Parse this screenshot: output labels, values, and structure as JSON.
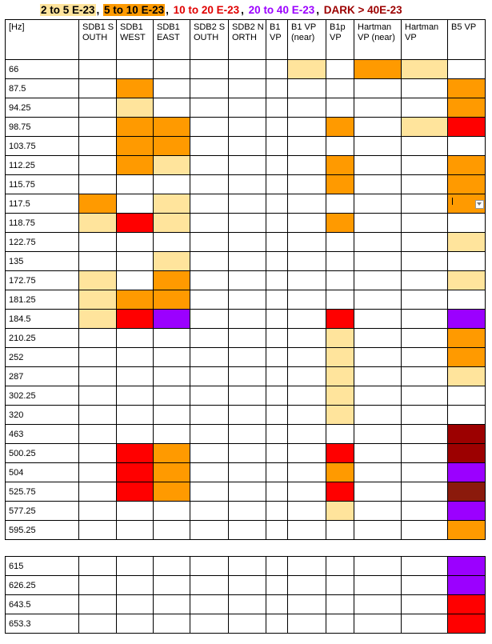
{
  "legend": [
    {
      "text": "2 to 5 E-23",
      "color": "#000000",
      "bg": "#ffe49c"
    },
    {
      "text": ", ",
      "color": "#000000",
      "bg": ""
    },
    {
      "text": "5 to 10 E-23",
      "color": "#000000",
      "bg": "#ff9a00"
    },
    {
      "text": ", ",
      "color": "#000000",
      "bg": ""
    },
    {
      "text": "10 to 20 E-23",
      "color": "#e00000",
      "bg": ""
    },
    {
      "text": ", ",
      "color": "#000000",
      "bg": ""
    },
    {
      "text": "20 to 40 E-23",
      "color": "#9b00ff",
      "bg": ""
    },
    {
      "text": ", ",
      "color": "#000000",
      "bg": ""
    },
    {
      "text": "DARK > 40E-23",
      "color": "#9c0000",
      "bg": ""
    }
  ],
  "header": [
    "[Hz]",
    "SDB1 SOUTH",
    "SDB1 WEST",
    "SDB1 EAST",
    "SDB2 SOUTH",
    "SDB2 NORTH",
    "B1 VP",
    "B1 VP (near)",
    "B1p VP",
    "Hartman VP (near)",
    "Hartman VP",
    "B5 VP"
  ],
  "rows_main": [
    {
      "freq": "66",
      "cells": [
        "",
        "",
        "",
        "",
        "",
        "",
        "pale",
        "",
        "orange",
        "pale",
        ""
      ]
    },
    {
      "freq": "87.5",
      "cells": [
        "",
        "orange",
        "",
        "",
        "",
        "",
        "",
        "",
        "",
        "",
        "orange"
      ]
    },
    {
      "freq": "94.25",
      "cells": [
        "",
        "pale",
        "",
        "",
        "",
        "",
        "",
        "",
        "",
        "",
        "orange"
      ]
    },
    {
      "freq": "98.75",
      "cells": [
        "",
        "orange",
        "orange",
        "",
        "",
        "",
        "",
        "orange",
        "",
        "pale",
        "red"
      ]
    },
    {
      "freq": "103.75",
      "cells": [
        "",
        "orange",
        "orange",
        "",
        "",
        "",
        "",
        "",
        "",
        "",
        ""
      ]
    },
    {
      "freq": "112.25",
      "cells": [
        "",
        "orange",
        "pale",
        "",
        "",
        "",
        "",
        "orange",
        "",
        "",
        "orange"
      ]
    },
    {
      "freq": "115.75",
      "cells": [
        "",
        "",
        "",
        "",
        "",
        "",
        "",
        "orange",
        "",
        "",
        "orange"
      ]
    },
    {
      "freq": "117.5",
      "cells": [
        "orange",
        "",
        "pale",
        "",
        "",
        "",
        "",
        "",
        "",
        "",
        "orange"
      ]
    },
    {
      "freq": "118.75",
      "cells": [
        "pale",
        "red",
        "pale",
        "",
        "",
        "",
        "",
        "orange",
        "",
        "",
        ""
      ]
    },
    {
      "freq": "122.75",
      "cells": [
        "",
        "",
        "",
        "",
        "",
        "",
        "",
        "",
        "",
        "",
        "pale"
      ]
    },
    {
      "freq": "135",
      "cells": [
        "",
        "",
        "pale",
        "",
        "",
        "",
        "",
        "",
        "",
        "",
        ""
      ]
    },
    {
      "freq": "172.75",
      "cells": [
        "pale",
        "",
        "orange",
        "",
        "",
        "",
        "",
        "",
        "",
        "",
        "pale"
      ]
    },
    {
      "freq": "181.25",
      "cells": [
        "pale",
        "orange",
        "orange",
        "",
        "",
        "",
        "",
        "",
        "",
        "",
        ""
      ]
    },
    {
      "freq": "184.5",
      "cells": [
        "pale",
        "red",
        "purple",
        "",
        "",
        "",
        "",
        "red",
        "",
        "",
        "purple"
      ]
    },
    {
      "freq": "210.25",
      "cells": [
        "",
        "",
        "",
        "",
        "",
        "",
        "",
        "pale",
        "",
        "",
        "orange"
      ]
    },
    {
      "freq": "252",
      "cells": [
        "",
        "",
        "",
        "",
        "",
        "",
        "",
        "pale",
        "",
        "",
        "orange"
      ]
    },
    {
      "freq": "287",
      "cells": [
        "",
        "",
        "",
        "",
        "",
        "",
        "",
        "pale",
        "",
        "",
        "pale"
      ]
    },
    {
      "freq": "302.25",
      "cells": [
        "",
        "",
        "",
        "",
        "",
        "",
        "",
        "pale",
        "",
        "",
        ""
      ]
    },
    {
      "freq": "320",
      "cells": [
        "",
        "",
        "",
        "",
        "",
        "",
        "",
        "pale",
        "",
        "",
        ""
      ]
    },
    {
      "freq": "463",
      "cells": [
        "",
        "",
        "",
        "",
        "",
        "",
        "",
        "",
        "",
        "",
        "dark"
      ]
    },
    {
      "freq": "500.25",
      "cells": [
        "",
        "red",
        "orange",
        "",
        "",
        "",
        "",
        "red",
        "",
        "",
        "dark"
      ]
    },
    {
      "freq": "504",
      "cells": [
        "",
        "red",
        "orange",
        "",
        "",
        "",
        "",
        "orange",
        "",
        "",
        "purple"
      ]
    },
    {
      "freq": "525.75",
      "cells": [
        "",
        "red",
        "orange",
        "",
        "",
        "",
        "",
        "red",
        "",
        "",
        "brown"
      ]
    },
    {
      "freq": "577.25",
      "cells": [
        "",
        "",
        "",
        "",
        "",
        "",
        "",
        "pale",
        "",
        "",
        "purple"
      ]
    },
    {
      "freq": "595.25",
      "cells": [
        "",
        "",
        "",
        "",
        "",
        "",
        "",
        "",
        "",
        "",
        "orange"
      ]
    }
  ],
  "rows_lower": [
    {
      "freq": "615",
      "cells": [
        "",
        "",
        "",
        "",
        "",
        "",
        "",
        "",
        "",
        "",
        "purple"
      ]
    },
    {
      "freq": "626.25",
      "cells": [
        "",
        "",
        "",
        "",
        "",
        "",
        "",
        "",
        "",
        "",
        "purple"
      ]
    },
    {
      "freq": "643.5",
      "cells": [
        "",
        "",
        "",
        "",
        "",
        "",
        "",
        "",
        "",
        "",
        "red"
      ]
    },
    {
      "freq": "653.3",
      "cells": [
        "",
        "",
        "",
        "",
        "",
        "",
        "",
        "",
        "",
        "",
        "red"
      ]
    }
  ],
  "colors": {
    "pale": "#ffe49c",
    "orange": "#ff9a00",
    "red": "#ff0000",
    "purple": "#9b00ff",
    "dark": "#9c0000",
    "brown": "#8b1a0c"
  },
  "dropdown_cell": {
    "row": "117.5",
    "column": "B5 VP",
    "icon": "chevron-down-icon"
  }
}
